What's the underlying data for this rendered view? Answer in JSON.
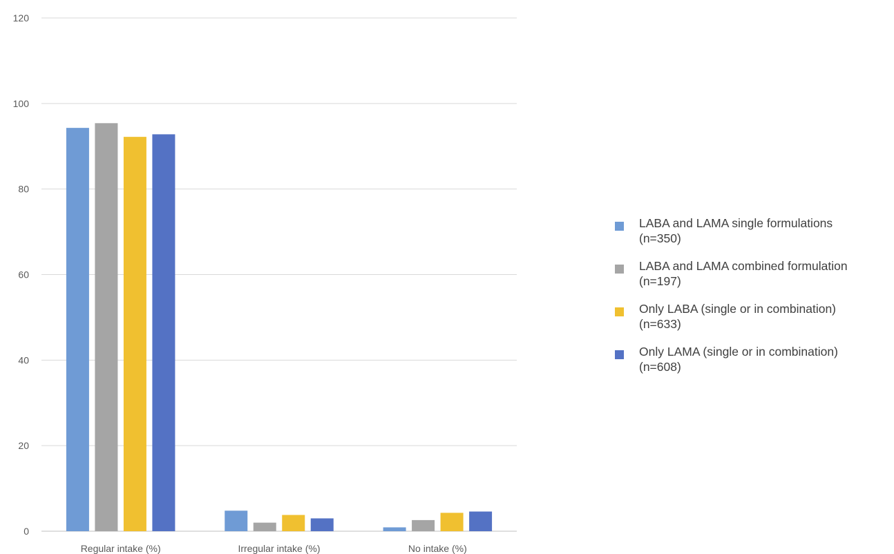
{
  "chart_data": {
    "type": "bar",
    "categories": [
      "Regular intake (%)",
      "Irregular intake (%)",
      "No intake (%)"
    ],
    "series": [
      {
        "name": "LABA and LAMA single formulations (n=350)",
        "values": [
          94.3,
          4.8,
          0.9
        ],
        "color": "#6f9bd5"
      },
      {
        "name": "LABA and LAMA combined formulation (n=197)",
        "values": [
          95.4,
          2.0,
          2.6
        ],
        "color": "#a5a5a5"
      },
      {
        "name": "Only LABA (single or in combination) (n=633)",
        "values": [
          92.2,
          3.8,
          4.3
        ],
        "color": "#f0c030"
      },
      {
        "name": "Only LAMA (single or in combination) (n=608)",
        "values": [
          92.8,
          3.0,
          4.6
        ],
        "color": "#5472c4"
      }
    ],
    "yticks": [
      "0",
      "20",
      "40",
      "60",
      "80",
      "100",
      "120"
    ],
    "ylim": [
      0,
      120
    ],
    "grid": true,
    "legend_position": "right",
    "title": "",
    "xlabel": "",
    "ylabel": ""
  },
  "legend": [
    {
      "line1": "LABA and LAMA single formulations",
      "line2": "(n=350)",
      "color": "#6f9bd5"
    },
    {
      "line1": "LABA and LAMA combined formulation",
      "line2": "(n=197)",
      "color": "#a5a5a5"
    },
    {
      "line1": "Only LABA (single or in combination)",
      "line2": "(n=633)",
      "color": "#f0c030"
    },
    {
      "line1": "Only LAMA (single or in combination)",
      "line2": "(n=608)",
      "color": "#5472c4"
    }
  ]
}
